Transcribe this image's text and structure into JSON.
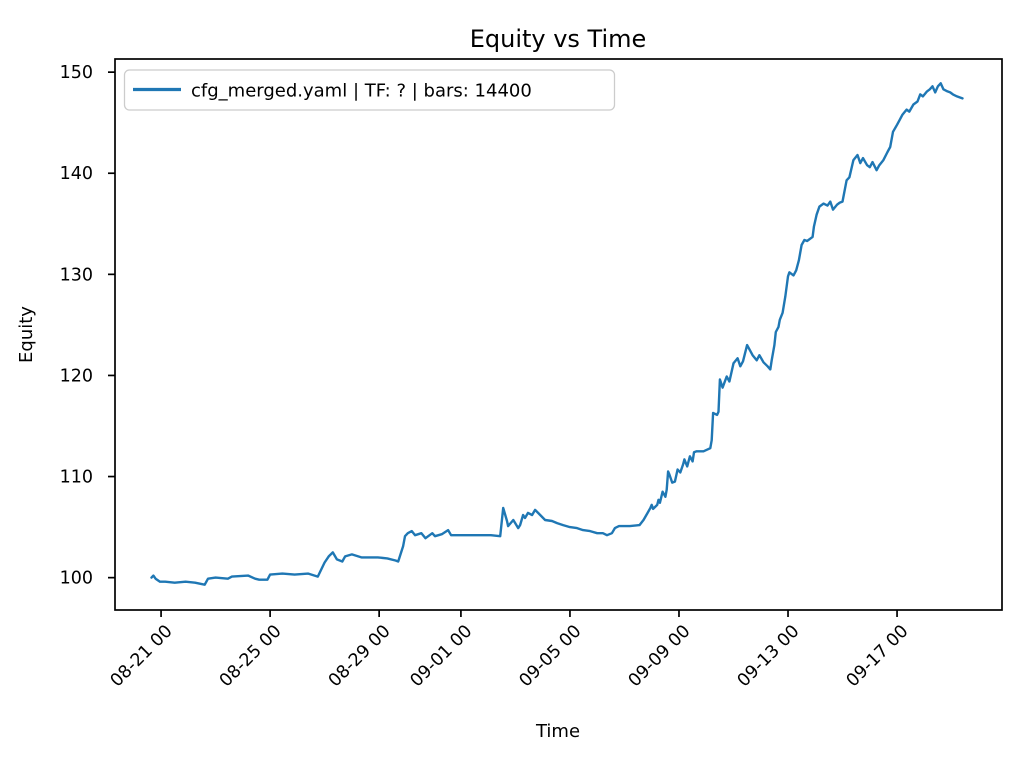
{
  "figure": {
    "background_color": "#ffffff",
    "spine_color": "#000000",
    "text_color": "#000000"
  },
  "chart_data": {
    "type": "line",
    "title": "Equity vs Time",
    "xlabel": "Time",
    "ylabel": "Equity",
    "grid": false,
    "legend": {
      "position": "upper left",
      "border_color": "#cccccc",
      "entries": [
        {
          "label": "cfg_merged.yaml | TF: ? | bars: 14400",
          "color": "#1f77b4"
        }
      ]
    },
    "x_axis": {
      "unit": "days since 08-21 00:00",
      "lim": [
        -1.69,
        30.85
      ],
      "ticks": [
        0,
        4,
        8,
        11,
        15,
        19,
        23,
        27
      ],
      "tick_labels": [
        "08-21 00",
        "08-25 00",
        "08-29 00",
        "09-01 00",
        "09-05 00",
        "09-09 00",
        "09-13 00",
        "09-17 00"
      ],
      "tick_rotation_deg": 45
    },
    "y_axis": {
      "lim": [
        96.8,
        151.3
      ],
      "ticks": [
        100,
        110,
        120,
        130,
        140,
        150
      ],
      "tick_labels": [
        "100",
        "110",
        "120",
        "130",
        "140",
        "150"
      ]
    },
    "series": [
      {
        "name": "cfg_merged.yaml | TF: ? | bars: 14400",
        "color": "#1f77b4",
        "line_width": 2.4,
        "points": [
          [
            -0.35,
            100.0
          ],
          [
            -0.28,
            100.2
          ],
          [
            -0.2,
            99.9
          ],
          [
            -0.04,
            99.6
          ],
          [
            0.15,
            99.6
          ],
          [
            0.5,
            99.5
          ],
          [
            0.9,
            99.6
          ],
          [
            1.25,
            99.5
          ],
          [
            1.6,
            99.3
          ],
          [
            1.72,
            99.9
          ],
          [
            2.0,
            100.0
          ],
          [
            2.45,
            99.9
          ],
          [
            2.6,
            100.1
          ],
          [
            3.2,
            100.2
          ],
          [
            3.45,
            99.9
          ],
          [
            3.6,
            99.8
          ],
          [
            3.9,
            99.8
          ],
          [
            4.0,
            100.3
          ],
          [
            4.45,
            100.4
          ],
          [
            4.9,
            100.3
          ],
          [
            5.4,
            100.4
          ],
          [
            5.75,
            100.1
          ],
          [
            6.0,
            101.5
          ],
          [
            6.15,
            102.1
          ],
          [
            6.3,
            102.5
          ],
          [
            6.45,
            101.8
          ],
          [
            6.65,
            101.6
          ],
          [
            6.75,
            102.1
          ],
          [
            7.0,
            102.3
          ],
          [
            7.35,
            102.0
          ],
          [
            7.95,
            102.0
          ],
          [
            8.3,
            101.9
          ],
          [
            8.6,
            101.7
          ],
          [
            8.7,
            101.6
          ],
          [
            8.88,
            103.1
          ],
          [
            8.95,
            104.1
          ],
          [
            9.05,
            104.4
          ],
          [
            9.2,
            104.6
          ],
          [
            9.32,
            104.2
          ],
          [
            9.55,
            104.4
          ],
          [
            9.7,
            103.9
          ],
          [
            9.8,
            104.1
          ],
          [
            9.95,
            104.4
          ],
          [
            10.05,
            104.1
          ],
          [
            10.3,
            104.3
          ],
          [
            10.53,
            104.7
          ],
          [
            10.64,
            104.2
          ],
          [
            11.0,
            104.2
          ],
          [
            11.4,
            104.2
          ],
          [
            11.8,
            104.2
          ],
          [
            12.1,
            104.2
          ],
          [
            12.44,
            104.1
          ],
          [
            12.55,
            106.9
          ],
          [
            12.69,
            105.6
          ],
          [
            12.73,
            105.1
          ],
          [
            12.92,
            105.7
          ],
          [
            12.99,
            105.4
          ],
          [
            13.1,
            104.9
          ],
          [
            13.17,
            105.2
          ],
          [
            13.28,
            106.2
          ],
          [
            13.35,
            105.9
          ],
          [
            13.46,
            106.4
          ],
          [
            13.61,
            106.2
          ],
          [
            13.72,
            106.7
          ],
          [
            13.83,
            106.4
          ],
          [
            14.09,
            105.7
          ],
          [
            14.34,
            105.6
          ],
          [
            14.53,
            105.4
          ],
          [
            14.75,
            105.2
          ],
          [
            15.0,
            105.0
          ],
          [
            15.26,
            104.9
          ],
          [
            15.48,
            104.7
          ],
          [
            15.74,
            104.6
          ],
          [
            16.0,
            104.4
          ],
          [
            16.21,
            104.4
          ],
          [
            16.36,
            104.2
          ],
          [
            16.54,
            104.4
          ],
          [
            16.65,
            104.9
          ],
          [
            16.8,
            105.1
          ],
          [
            17.2,
            105.1
          ],
          [
            17.55,
            105.2
          ],
          [
            17.7,
            105.7
          ],
          [
            17.85,
            106.4
          ],
          [
            17.95,
            106.9
          ],
          [
            18.0,
            107.2
          ],
          [
            18.05,
            106.8
          ],
          [
            18.2,
            107.2
          ],
          [
            18.25,
            107.7
          ],
          [
            18.3,
            107.4
          ],
          [
            18.4,
            108.5
          ],
          [
            18.5,
            108.0
          ],
          [
            18.55,
            108.7
          ],
          [
            18.6,
            110.5
          ],
          [
            18.65,
            110.2
          ],
          [
            18.75,
            109.4
          ],
          [
            18.85,
            109.5
          ],
          [
            18.95,
            110.7
          ],
          [
            19.05,
            110.4
          ],
          [
            19.15,
            111.2
          ],
          [
            19.2,
            111.7
          ],
          [
            19.3,
            111.0
          ],
          [
            19.4,
            112.0
          ],
          [
            19.5,
            111.5
          ],
          [
            19.55,
            112.4
          ],
          [
            19.65,
            112.5
          ],
          [
            19.9,
            112.5
          ],
          [
            20.15,
            112.8
          ],
          [
            20.2,
            113.6
          ],
          [
            20.25,
            116.3
          ],
          [
            20.4,
            116.1
          ],
          [
            20.45,
            116.4
          ],
          [
            20.5,
            119.6
          ],
          [
            20.6,
            118.8
          ],
          [
            20.75,
            119.9
          ],
          [
            20.85,
            119.4
          ],
          [
            21.0,
            121.2
          ],
          [
            21.15,
            121.7
          ],
          [
            21.25,
            120.9
          ],
          [
            21.35,
            121.4
          ],
          [
            21.5,
            123.0
          ],
          [
            21.6,
            122.5
          ],
          [
            21.7,
            122.0
          ],
          [
            21.85,
            121.5
          ],
          [
            21.95,
            122.0
          ],
          [
            22.1,
            121.3
          ],
          [
            22.25,
            120.9
          ],
          [
            22.35,
            120.6
          ],
          [
            22.4,
            121.5
          ],
          [
            22.5,
            123.0
          ],
          [
            22.55,
            124.3
          ],
          [
            22.65,
            124.8
          ],
          [
            22.7,
            125.5
          ],
          [
            22.8,
            126.2
          ],
          [
            22.9,
            127.8
          ],
          [
            23.0,
            129.8
          ],
          [
            23.05,
            130.2
          ],
          [
            23.2,
            129.9
          ],
          [
            23.3,
            130.4
          ],
          [
            23.4,
            131.4
          ],
          [
            23.5,
            132.9
          ],
          [
            23.6,
            133.4
          ],
          [
            23.7,
            133.3
          ],
          [
            23.9,
            133.7
          ],
          [
            23.95,
            134.7
          ],
          [
            24.05,
            135.9
          ],
          [
            24.15,
            136.7
          ],
          [
            24.3,
            137.0
          ],
          [
            24.45,
            136.8
          ],
          [
            24.55,
            137.2
          ],
          [
            24.65,
            136.4
          ],
          [
            24.8,
            136.9
          ],
          [
            24.9,
            137.1
          ],
          [
            25.0,
            137.2
          ],
          [
            25.15,
            139.3
          ],
          [
            25.25,
            139.6
          ],
          [
            25.4,
            141.3
          ],
          [
            25.55,
            141.8
          ],
          [
            25.65,
            141.0
          ],
          [
            25.75,
            141.5
          ],
          [
            25.9,
            140.8
          ],
          [
            26.0,
            140.6
          ],
          [
            26.1,
            141.1
          ],
          [
            26.25,
            140.3
          ],
          [
            26.35,
            140.8
          ],
          [
            26.5,
            141.3
          ],
          [
            26.65,
            142.1
          ],
          [
            26.75,
            142.6
          ],
          [
            26.85,
            144.1
          ],
          [
            27.0,
            144.8
          ],
          [
            27.1,
            145.3
          ],
          [
            27.2,
            145.8
          ],
          [
            27.35,
            146.3
          ],
          [
            27.45,
            146.1
          ],
          [
            27.6,
            146.8
          ],
          [
            27.75,
            147.1
          ],
          [
            27.85,
            147.8
          ],
          [
            27.95,
            147.6
          ],
          [
            28.1,
            148.1
          ],
          [
            28.2,
            148.3
          ],
          [
            28.3,
            148.6
          ],
          [
            28.4,
            148.0
          ],
          [
            28.5,
            148.6
          ],
          [
            28.6,
            148.9
          ],
          [
            28.7,
            148.3
          ],
          [
            28.85,
            148.1
          ],
          [
            28.95,
            148.0
          ],
          [
            29.05,
            147.8
          ],
          [
            29.2,
            147.6
          ],
          [
            29.3,
            147.5
          ],
          [
            29.4,
            147.4
          ]
        ]
      }
    ]
  }
}
